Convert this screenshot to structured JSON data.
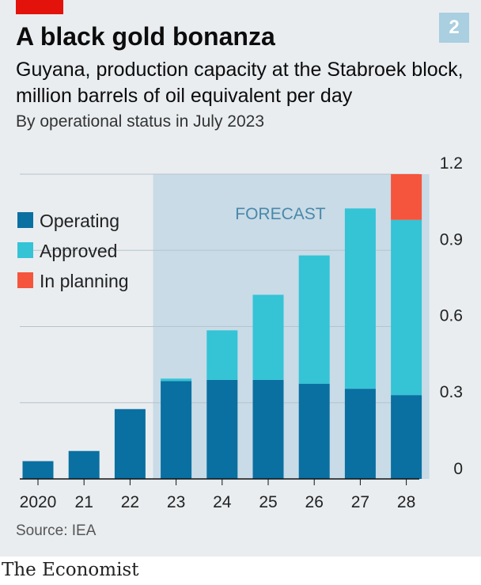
{
  "header": {
    "title": "A black gold bonanza",
    "badge": "2",
    "subtitle": "Guyana, production capacity at the Stabroek block, million barrels of oil equivalent per day",
    "subtitle2": "By operational status in July 2023"
  },
  "footer": {
    "source": "Source: IEA",
    "brand": "The Economist"
  },
  "chart_data": {
    "type": "bar",
    "stacked": true,
    "categories": [
      "2020",
      "21",
      "22",
      "23",
      "24",
      "25",
      "26",
      "27",
      "28"
    ],
    "series": [
      {
        "name": "Operating",
        "color": "#0a6fa1",
        "values": [
          0.07,
          0.11,
          0.275,
          0.385,
          0.39,
          0.39,
          0.375,
          0.355,
          0.33
        ]
      },
      {
        "name": "Approved",
        "color": "#35c3d6",
        "values": [
          0,
          0,
          0,
          0.01,
          0.195,
          0.335,
          0.505,
          0.71,
          0.69
        ]
      },
      {
        "name": "In planning",
        "color": "#f5553d",
        "values": [
          0,
          0,
          0,
          0,
          0,
          0,
          0,
          0,
          0.18
        ]
      }
    ],
    "ylim": [
      0,
      1.2
    ],
    "yticks": [
      0,
      0.3,
      0.6,
      0.9,
      1.2
    ],
    "ytick_labels": [
      "0",
      "0.3",
      "0.6",
      "0.9",
      "1.2"
    ],
    "grid": true,
    "legend_position": "top-left",
    "forecast": {
      "label": "FORECAST",
      "from_category": "23",
      "to_category": "28",
      "color": "#c8dbe6"
    }
  }
}
